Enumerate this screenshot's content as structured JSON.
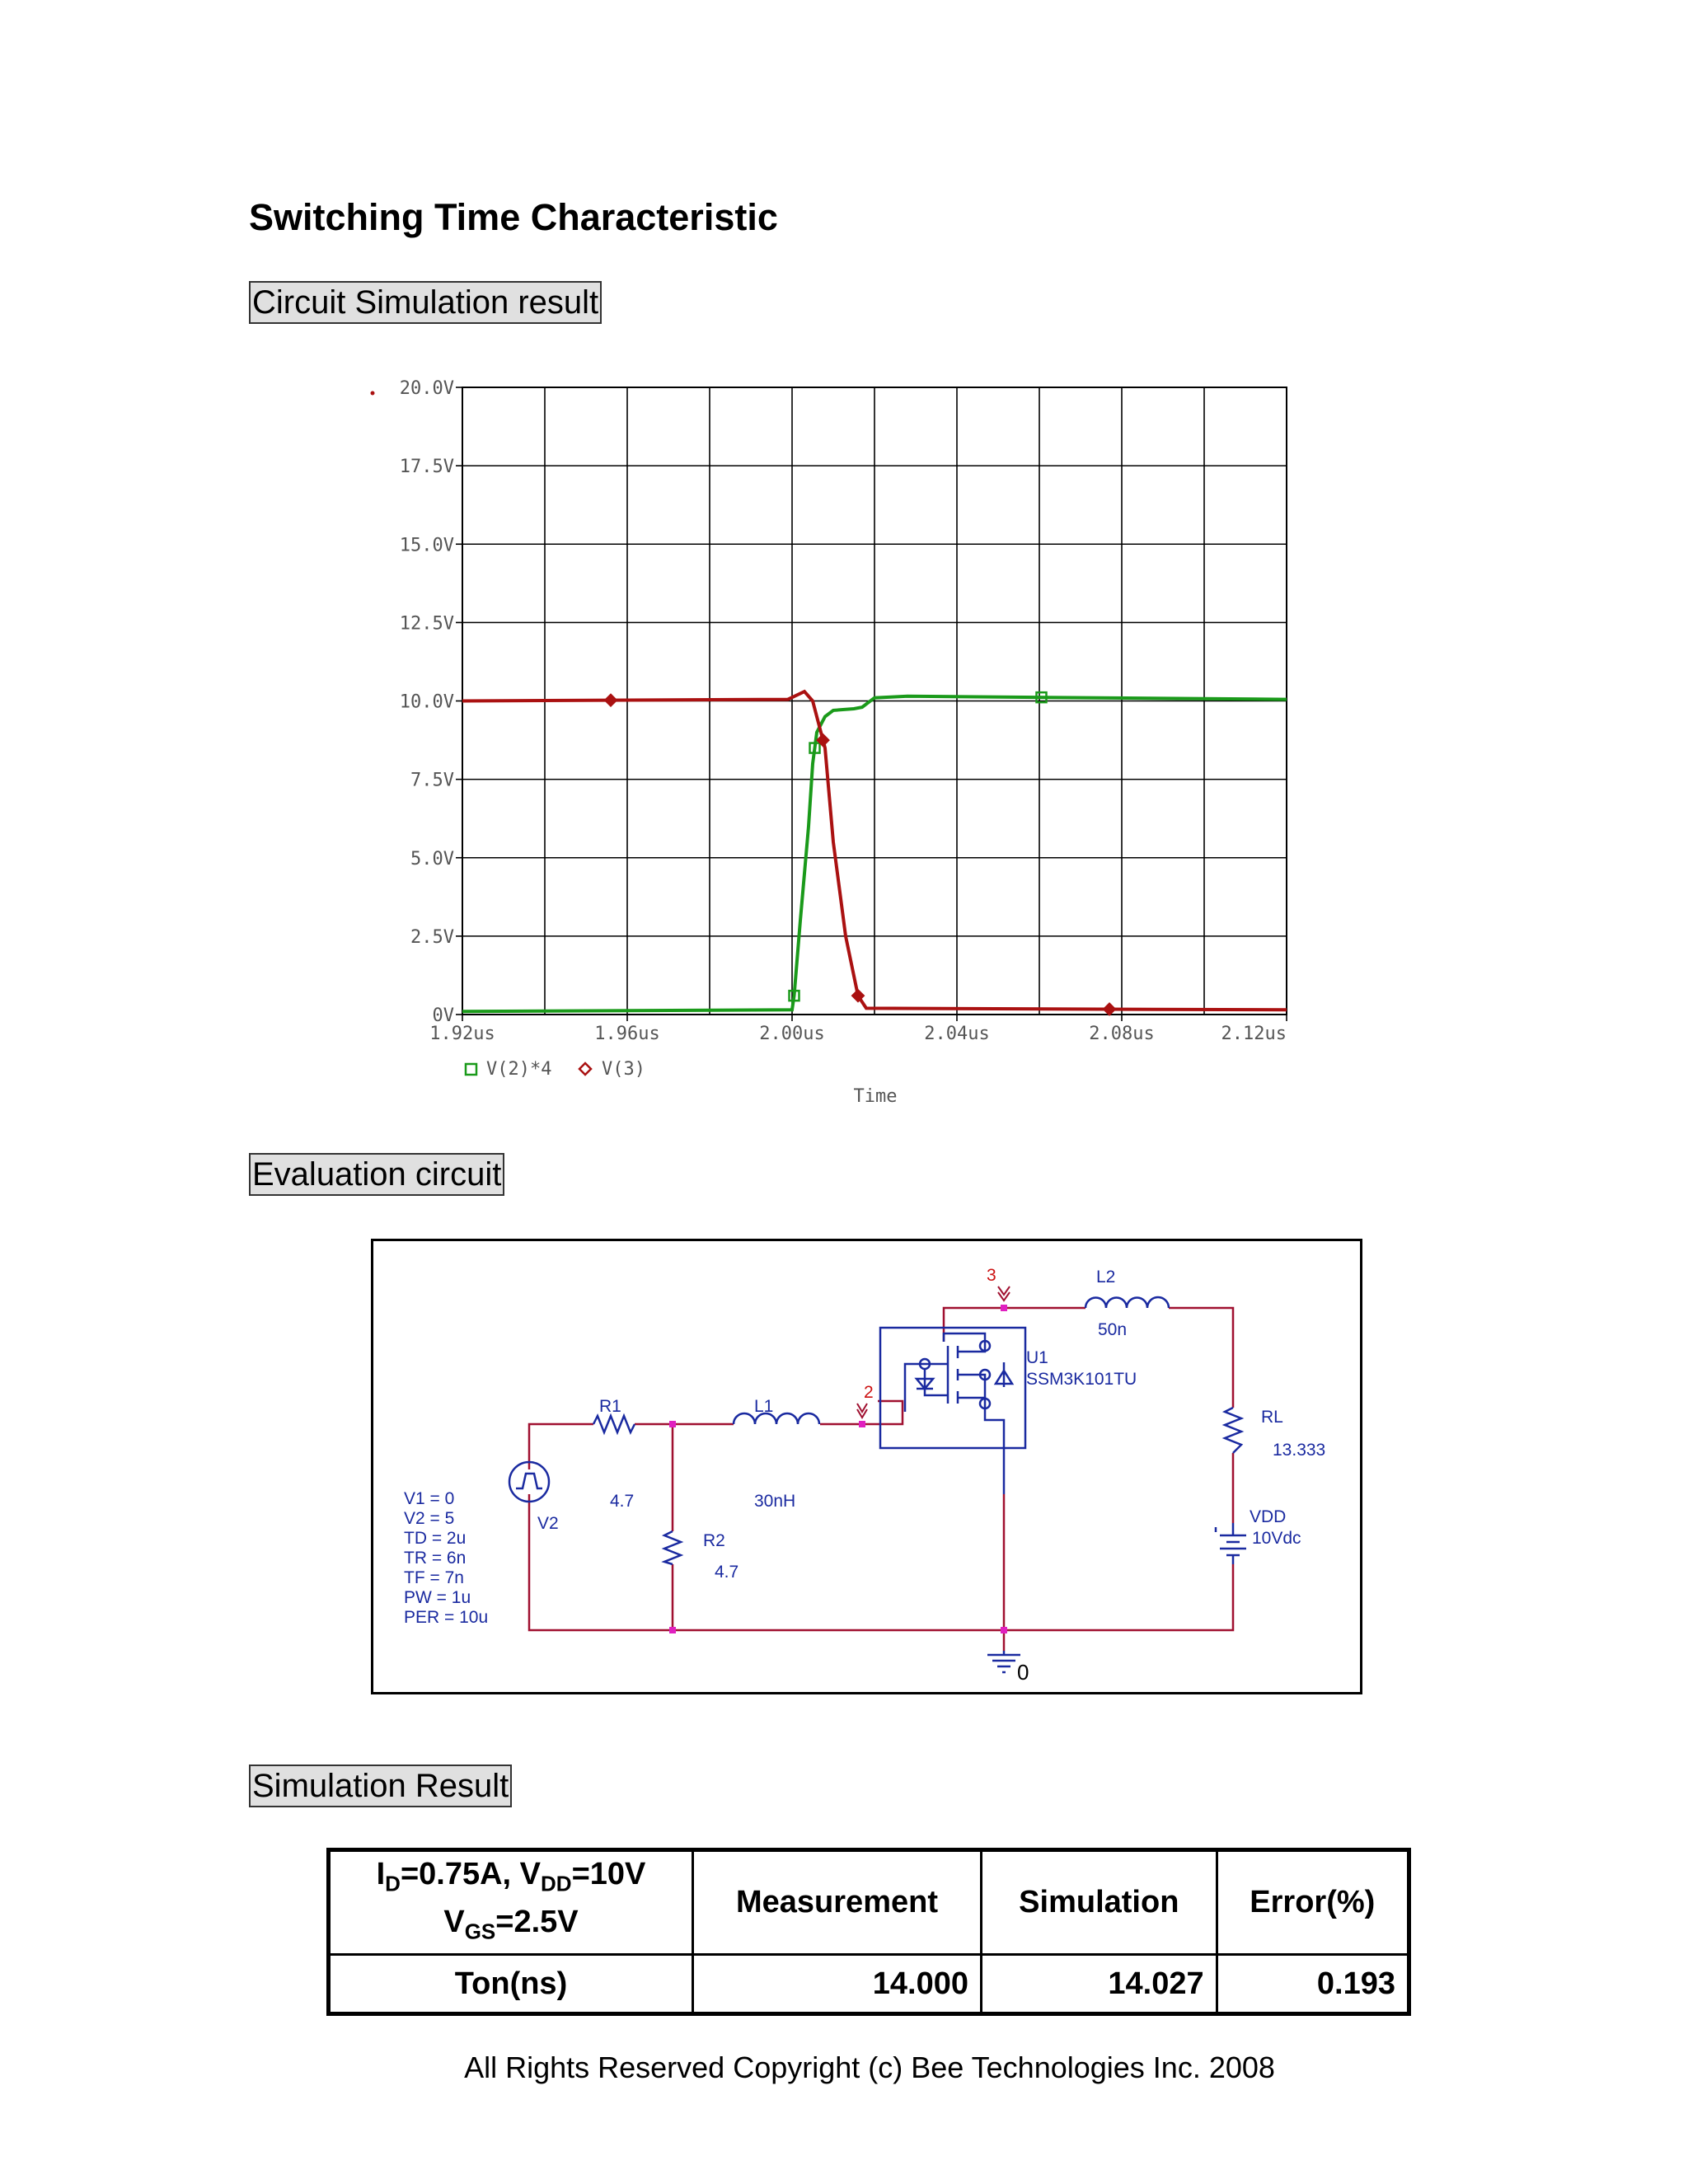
{
  "title": "Switching Time Characteristic",
  "sections": {
    "simulation": "Circuit Simulation result",
    "evaluation": "Evaluation circuit",
    "result": "Simulation Result"
  },
  "chart_data": {
    "type": "line",
    "xlabel": "Time",
    "xlim": [
      1.92,
      2.12
    ],
    "ylim": [
      0,
      20
    ],
    "x_ticks": [
      "1.92us",
      "1.96us",
      "2.00us",
      "2.04us",
      "2.08us",
      "2.12us"
    ],
    "y_ticks": [
      "0V",
      "2.5V",
      "5.0V",
      "7.5V",
      "10.0V",
      "12.5V",
      "15.0V",
      "17.5V",
      "20.0V"
    ],
    "grid": true,
    "legend_position": "bottom-left",
    "series": [
      {
        "name": "V(2)*4",
        "color": "#1a9a1a",
        "marker": "square",
        "x": [
          1.92,
          2.0,
          2.0005,
          2.002,
          2.004,
          2.005,
          2.006,
          2.008,
          2.01,
          2.015,
          2.017,
          2.02,
          2.028,
          2.12
        ],
        "y": [
          0.1,
          0.15,
          0.6,
          3.0,
          6.0,
          8.0,
          9.0,
          9.5,
          9.7,
          9.75,
          9.8,
          10.1,
          10.15,
          10.05
        ],
        "markers_at": [
          2.0005,
          2.0055,
          2.0605
        ]
      },
      {
        "name": "V(3)",
        "color": "#aa1111",
        "marker": "diamond",
        "x": [
          1.92,
          1.999,
          2.003,
          2.005,
          2.008,
          2.01,
          2.013,
          2.016,
          2.018,
          2.12
        ],
        "y": [
          10.0,
          10.05,
          10.3,
          10.0,
          8.5,
          5.5,
          2.5,
          0.6,
          0.2,
          0.15
        ],
        "markers_at": [
          1.956,
          2.0075,
          2.016,
          2.077
        ]
      }
    ]
  },
  "circuit": {
    "v_params": [
      "V1 = 0",
      "V2 = 5",
      "TD = 2u",
      "TR = 6n",
      "TF = 7n",
      "PW = 1u",
      "PER = 10u"
    ],
    "v2_name": "V2",
    "r1_name": "R1",
    "r1_value": "4.7",
    "l1_name": "L1",
    "l1_value": "30nH",
    "r2_name": "R2",
    "r2_value": "4.7",
    "node2": "2",
    "node3": "3",
    "node0": "0",
    "l2_name": "L2",
    "l2_value": "50n",
    "u1_name": "U1",
    "u1_part": "SSM3K101TU",
    "rl_name": "RL",
    "rl_value": "13.333",
    "vdd_name": "VDD",
    "vdd_value": "10Vdc"
  },
  "results_table": {
    "condition_id": "I",
    "condition_id_sub": "D",
    "condition_id_val": "=0.75A, V",
    "condition_vdd_sub": "DD",
    "condition_vdd_val": "=10V",
    "condition_vgs": "V",
    "condition_vgs_sub": "GS",
    "condition_vgs_val": "=2.5V",
    "headers": [
      "Measurement",
      "Simulation",
      "Error(%)"
    ],
    "rows": [
      {
        "label": "Ton(ns)",
        "measurement": "14.000",
        "simulation": "14.027",
        "error": "0.193"
      }
    ]
  },
  "footer": "All Rights Reserved Copyright (c) Bee Technologies Inc. 2008"
}
